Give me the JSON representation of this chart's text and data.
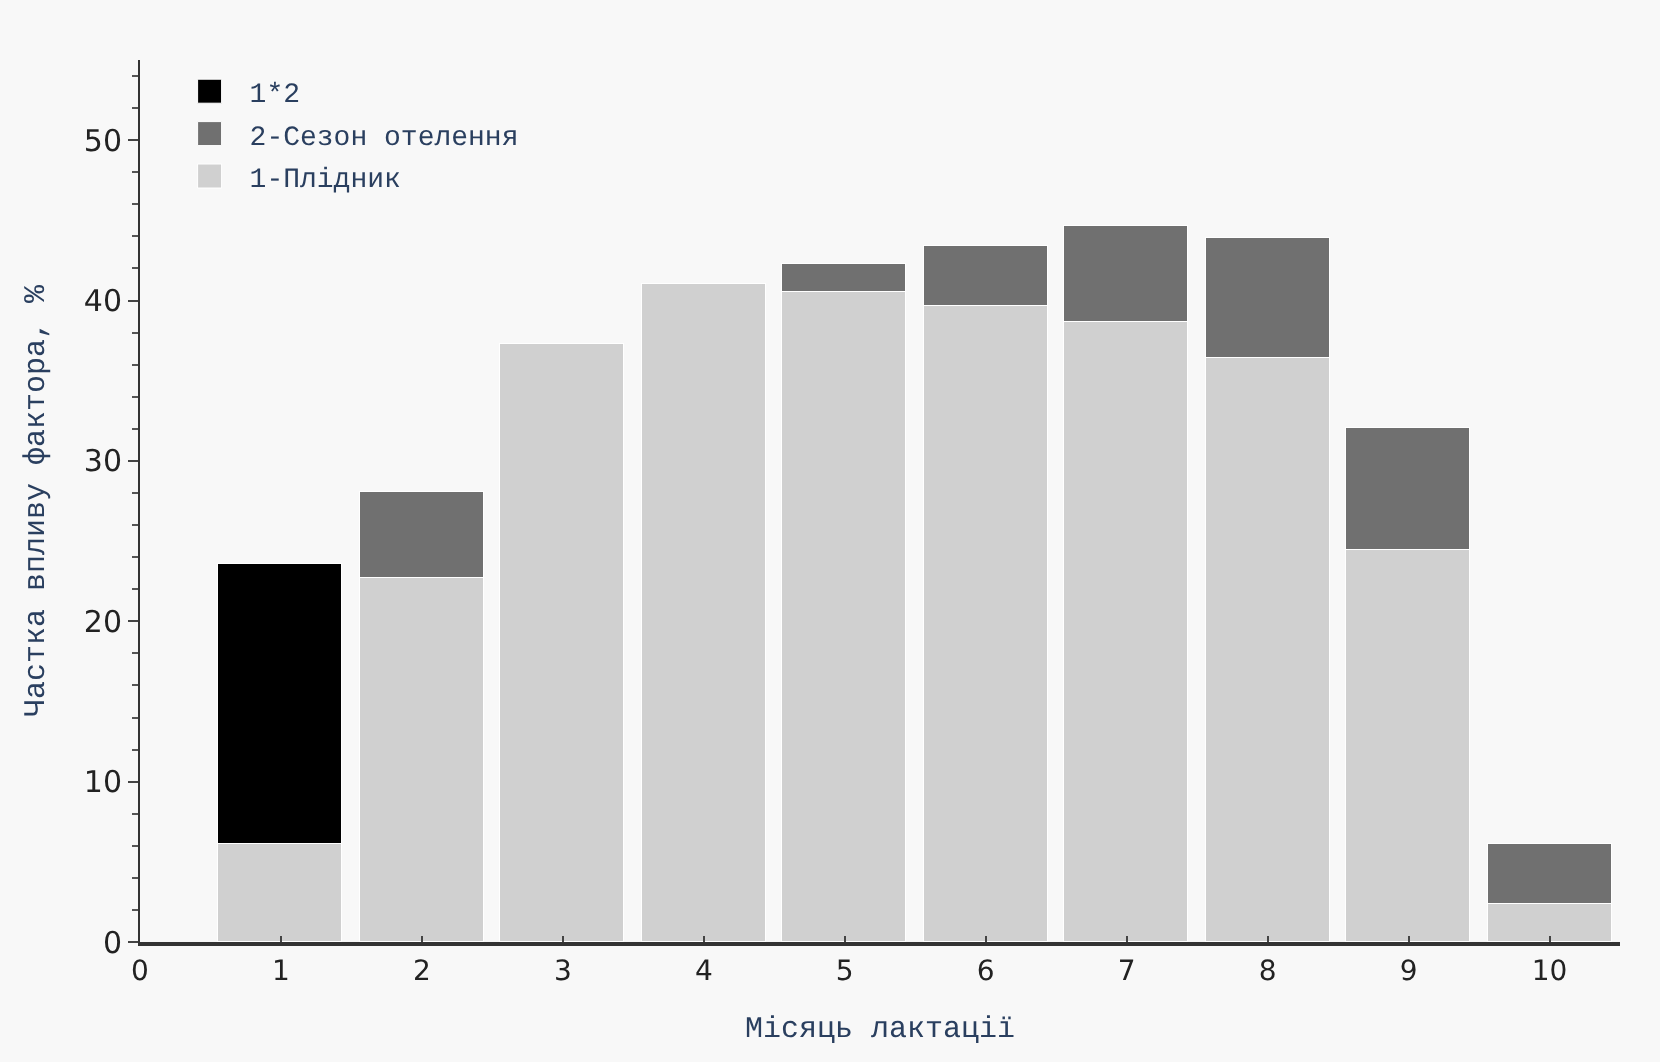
{
  "chart_data": {
    "type": "bar",
    "stacked": true,
    "xlabel": "Місяць лактації",
    "ylabel": "Частка впливу фактора, %",
    "x": [
      1,
      2,
      3,
      4,
      5,
      6,
      7,
      8,
      9,
      10
    ],
    "series": [
      {
        "name": "1-Плідник",
        "color": "#d0d0d0",
        "values": [
          6.1,
          22.7,
          37.3,
          41.0,
          40.5,
          39.6,
          38.7,
          36.4,
          24.4,
          2.4
        ]
      },
      {
        "name": "2-Сезон отелення",
        "color": "#707070",
        "values": [
          null,
          5.3,
          null,
          null,
          1.8,
          3.8,
          6.0,
          7.5,
          7.6,
          3.7
        ]
      },
      {
        "name": "1*2",
        "color": "#000000",
        "values": [
          17.5,
          null,
          null,
          null,
          null,
          null,
          null,
          null,
          null,
          null
        ]
      }
    ],
    "xlim": [
      0,
      10.5
    ],
    "xticks": [
      0,
      1,
      2,
      3,
      4,
      5,
      6,
      7,
      8,
      9,
      10
    ],
    "ylim": [
      0,
      55
    ],
    "yticks": [
      0,
      10,
      20,
      30,
      40,
      50
    ],
    "grid": false,
    "legend": "top left"
  }
}
